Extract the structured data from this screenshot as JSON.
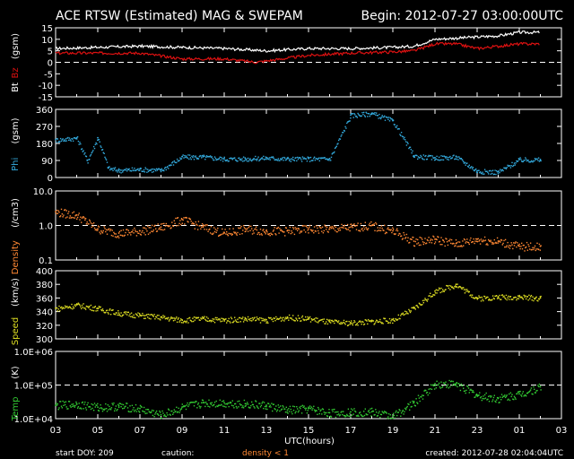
{
  "header": {
    "title": "ACE RTSW (Estimated) MAG & SWEPAM",
    "begin": "Begin: 2012-07-27 03:00:00UTC"
  },
  "footer": {
    "start_doy": "start DOY: 209",
    "caution": "caution:",
    "density_note": "density < 1",
    "created": "created: 2012-07-28 02:04:04UTC"
  },
  "colors": {
    "bt": "#ffffff",
    "bz": "#dd1111",
    "phi": "#33aadd",
    "density": "#ff8833",
    "speed": "#dddd22",
    "temp": "#33cc33",
    "frame": "#ffffff",
    "dashed": "#ffffff"
  },
  "chart_data": [
    {
      "type": "line",
      "ylabel_bt": "Bt",
      "ylabel_bz": "Bz",
      "ylabel_unit": "(gsm)",
      "ylim": [
        -15,
        15
      ],
      "yticks": [
        "15",
        "10",
        "5",
        "0",
        "-5",
        "-10",
        "-15"
      ],
      "dashed_y": 0,
      "series": [
        {
          "name": "Bt",
          "x": [
            3,
            5,
            7,
            9,
            11,
            13,
            15,
            17,
            19,
            20,
            21,
            22,
            23,
            24,
            25,
            26
          ],
          "y": [
            6,
            6.5,
            7,
            6.5,
            6,
            5,
            6,
            6,
            6.5,
            7,
            10,
            10.5,
            11,
            11.5,
            13,
            13
          ]
        },
        {
          "name": "Bz",
          "x": [
            3,
            5,
            7,
            9,
            11,
            12.5,
            15,
            17,
            19,
            20,
            21,
            22,
            23,
            24,
            25,
            26
          ],
          "y": [
            4,
            4,
            4,
            1.5,
            1.5,
            0,
            3,
            4,
            4.5,
            5,
            8,
            8,
            6,
            7,
            8,
            8
          ]
        }
      ]
    },
    {
      "type": "scatter",
      "ylabel": "Phi",
      "ylabel_unit": "(gsm)",
      "ylim": [
        0,
        360
      ],
      "yticks": [
        "360",
        "270",
        "180",
        "90",
        "0"
      ],
      "series": [
        {
          "name": "Phi",
          "x": [
            3,
            4,
            4.5,
            5,
            5.5,
            6,
            7,
            8,
            9,
            10,
            11,
            12,
            13,
            14,
            15,
            16,
            17,
            18,
            19,
            20,
            21,
            22,
            23,
            24,
            25,
            26
          ],
          "y": [
            200,
            210,
            90,
            210,
            50,
            40,
            45,
            40,
            110,
            110,
            100,
            100,
            105,
            100,
            100,
            100,
            330,
            340,
            300,
            115,
            105,
            110,
            35,
            30,
            95,
            95
          ]
        }
      ]
    },
    {
      "type": "scatter",
      "ylabel": "Density",
      "ylabel_unit": "(/cm3)",
      "log_scale": true,
      "ylim": [
        0.1,
        10
      ],
      "yticks": [
        "10.0",
        "1.0",
        "0.1"
      ],
      "dashed_y": 1,
      "series": [
        {
          "name": "Density",
          "x": [
            3,
            4,
            5,
            6,
            7,
            8,
            9,
            10,
            11,
            12,
            13,
            14,
            15,
            16,
            17,
            18,
            19,
            20,
            21,
            22,
            23,
            24,
            25,
            26
          ],
          "y": [
            2.5,
            2,
            0.8,
            0.6,
            0.7,
            0.9,
            1.5,
            0.9,
            0.6,
            0.8,
            0.7,
            0.7,
            0.8,
            0.8,
            0.9,
            1.0,
            0.7,
            0.35,
            0.4,
            0.3,
            0.4,
            0.35,
            0.25,
            0.25
          ]
        }
      ]
    },
    {
      "type": "scatter",
      "ylabel": "Speed",
      "ylabel_unit": "(km/s)",
      "ylim": [
        300,
        400
      ],
      "yticks": [
        "400",
        "380",
        "360",
        "340",
        "320",
        "300"
      ],
      "series": [
        {
          "name": "Speed",
          "x": [
            3,
            4,
            5,
            6,
            7,
            8,
            9,
            10,
            11,
            12,
            13,
            14,
            15,
            16,
            17,
            18,
            19,
            20,
            21,
            22,
            23,
            24,
            25,
            26
          ],
          "y": [
            345,
            350,
            345,
            338,
            335,
            332,
            328,
            330,
            328,
            330,
            328,
            332,
            330,
            325,
            324,
            326,
            328,
            345,
            370,
            380,
            360,
            362,
            362,
            360
          ]
        }
      ]
    },
    {
      "type": "scatter",
      "ylabel": "Temp",
      "ylabel_unit": "(K)",
      "log_scale": true,
      "ylim": [
        10000,
        1000000
      ],
      "yticks": [
        "1.0E+06",
        "1.0E+05",
        "1.0E+04"
      ],
      "dashed_y": 100000,
      "series": [
        {
          "name": "Temp",
          "x": [
            3,
            4,
            5,
            6,
            7,
            8,
            9,
            10,
            11,
            12,
            13,
            14,
            15,
            16,
            17,
            18,
            19,
            20,
            21,
            22,
            23,
            24,
            25,
            26
          ],
          "y": [
            25000,
            28000,
            22000,
            24000,
            20000,
            13000,
            22000,
            30000,
            30000,
            28000,
            25000,
            18000,
            20000,
            15000,
            16000,
            16000,
            12000,
            30000,
            110000,
            110000,
            50000,
            40000,
            55000,
            90000
          ]
        }
      ]
    }
  ],
  "xaxis": {
    "ticks": [
      "03",
      "05",
      "07",
      "09",
      "11",
      "13",
      "15",
      "17",
      "19",
      "21",
      "23",
      "01",
      "03"
    ],
    "label": "UTC(hours)",
    "range": [
      3,
      27
    ]
  }
}
